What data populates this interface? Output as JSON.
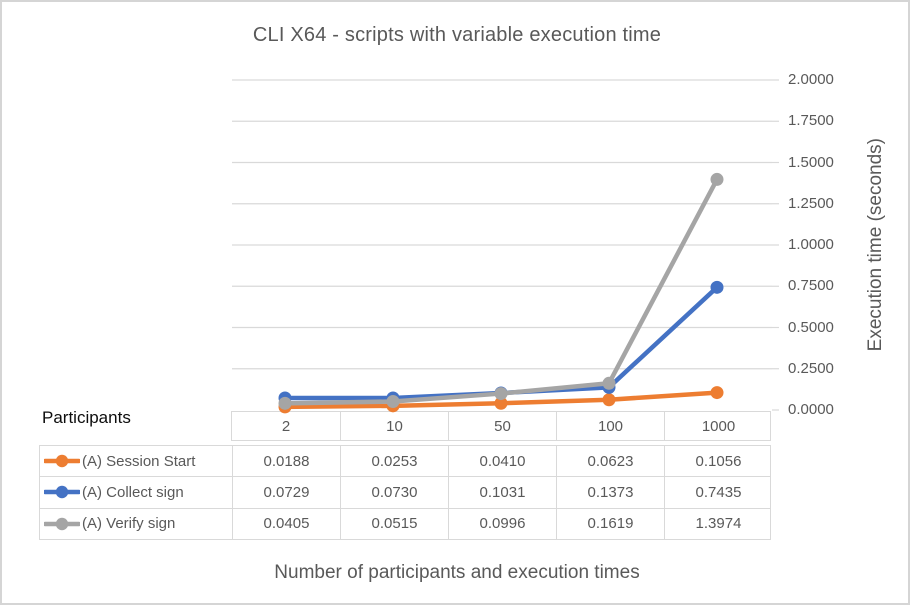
{
  "chart": {
    "title": "CLI X64 - scripts with variable execution time",
    "y_axis": {
      "title": "Execution time (seconds)",
      "tick_labels": [
        "0.0000",
        "0.2500",
        "0.5000",
        "0.7500",
        "1.0000",
        "1.2500",
        "1.5000",
        "1.7500",
        "2.0000"
      ],
      "min": 0,
      "max": 2,
      "step": 0.25
    },
    "x_axis": {
      "title": "Number of participants and execution times"
    }
  },
  "table": {
    "corner_label": "Participants",
    "column_headers": [
      "2",
      "10",
      "50",
      "100",
      "1000"
    ]
  },
  "chart_data": {
    "type": "line",
    "title": "CLI X64 - scripts with variable execution time",
    "xlabel": "Number of participants and execution times",
    "ylabel": "Execution time (seconds)",
    "categories": [
      2,
      10,
      50,
      100,
      1000
    ],
    "series": [
      {
        "name": "(A) Session Start",
        "color": "#ED7D31",
        "values": [
          0.0188,
          0.0253,
          0.041,
          0.0623,
          0.1056
        ],
        "display": [
          "0.0188",
          "0.0253",
          "0.0410",
          "0.0623",
          "0.1056"
        ]
      },
      {
        "name": "(A) Collect sign",
        "color": "#4472C4",
        "values": [
          0.0729,
          0.073,
          0.1031,
          0.1373,
          0.7435
        ],
        "display": [
          "0.0729",
          "0.0730",
          "0.1031",
          "0.1373",
          "0.7435"
        ]
      },
      {
        "name": "(A) Verify sign",
        "color": "#A5A5A5",
        "values": [
          0.0405,
          0.0515,
          0.0996,
          0.1619,
          1.3974
        ],
        "display": [
          "0.0405",
          "0.0515",
          "0.0996",
          "0.1619",
          "1.3974"
        ]
      }
    ],
    "ylim": [
      0,
      2
    ],
    "grid": true,
    "legend_position": "data-table-left"
  },
  "colors": {
    "grid": "#D9D9D9",
    "axis_text": "#595959",
    "table_border": "#D9D9D9",
    "table_text": "#595959",
    "corner_text": "#0D0D0D",
    "background": "#FFFFFF",
    "frame_border": "#D5D5D5"
  }
}
